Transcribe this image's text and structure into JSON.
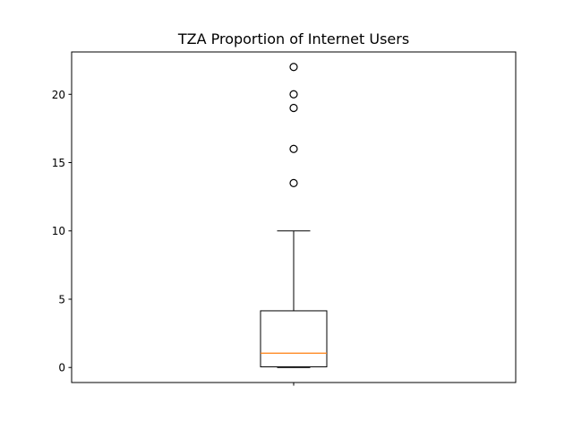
{
  "chart_data": {
    "type": "box",
    "title": "TZA Proportion of Internet Users",
    "xlabel": "",
    "ylabel": "",
    "ylim": [
      -1.1,
      23.1
    ],
    "yticks": [
      0,
      5,
      10,
      15,
      20
    ],
    "xticks": [
      ""
    ],
    "grid": false,
    "legend": "none",
    "series": [
      {
        "min": 0,
        "q1": 0.05,
        "median": 1.05,
        "q3": 4.15,
        "whisker_low": 0,
        "whisker_high": 10,
        "outliers": [
          13.5,
          16,
          19,
          20,
          22
        ]
      }
    ],
    "colors": {
      "box": "#000000",
      "median": "#ff7f0e",
      "outlier": "#000000"
    }
  }
}
